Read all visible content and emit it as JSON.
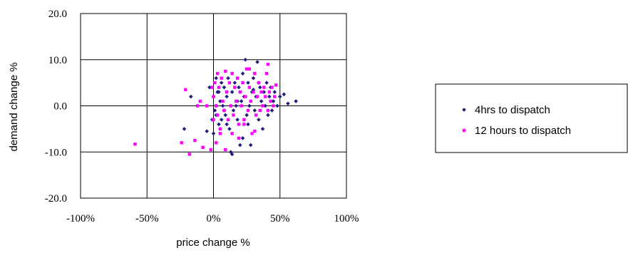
{
  "chart_data": {
    "type": "scatter",
    "xlabel": "price change %",
    "ylabel": "demand change %",
    "xlim": [
      -100,
      100
    ],
    "ylim": [
      -20,
      20
    ],
    "x_ticks": [
      "-100%",
      "-50%",
      "0%",
      "50%",
      "100%"
    ],
    "x_tick_values": [
      -100,
      -50,
      0,
      50,
      100
    ],
    "y_ticks": [
      "20.0",
      "10.0",
      "0.0",
      "-10.0",
      "-20.0"
    ],
    "y_tick_values": [
      20,
      10,
      0,
      -10,
      -20
    ],
    "grid": true,
    "legend_position": "right",
    "series": [
      {
        "name": "4hrs to dispatch",
        "color": "#1f1f7a",
        "marker": "diamond",
        "points": [
          [
            -22,
            -5
          ],
          [
            -17,
            2
          ],
          [
            -5,
            -5.5
          ],
          [
            -3,
            4
          ],
          [
            -1,
            -3
          ],
          [
            0,
            -6
          ],
          [
            0,
            2
          ],
          [
            1,
            -1
          ],
          [
            2,
            6
          ],
          [
            2,
            -2
          ],
          [
            3,
            3
          ],
          [
            4,
            -4
          ],
          [
            5,
            1
          ],
          [
            6,
            5
          ],
          [
            6,
            -3
          ],
          [
            7,
            0
          ],
          [
            8,
            4
          ],
          [
            9,
            -2
          ],
          [
            10,
            2
          ],
          [
            11,
            6
          ],
          [
            12,
            -5
          ],
          [
            13,
            -10
          ],
          [
            14,
            3
          ],
          [
            15,
            -1
          ],
          [
            16,
            5
          ],
          [
            17,
            0
          ],
          [
            18,
            -3
          ],
          [
            19,
            4
          ],
          [
            20,
            -8.5
          ],
          [
            21,
            1
          ],
          [
            22,
            7
          ],
          [
            23,
            2
          ],
          [
            24,
            10
          ],
          [
            25,
            -2
          ],
          [
            26,
            5
          ],
          [
            27,
            0
          ],
          [
            28,
            -8.5
          ],
          [
            29,
            3
          ],
          [
            30,
            6
          ],
          [
            31,
            -1
          ],
          [
            32,
            2
          ],
          [
            33,
            9.5
          ],
          [
            34,
            -3
          ],
          [
            35,
            4
          ],
          [
            36,
            1
          ],
          [
            37,
            -5
          ],
          [
            38,
            3
          ],
          [
            39,
            0
          ],
          [
            40,
            5
          ],
          [
            41,
            -2
          ],
          [
            42,
            2
          ],
          [
            43,
            4
          ],
          [
            44,
            -1
          ],
          [
            45,
            1
          ],
          [
            46,
            3
          ],
          [
            48,
            0
          ],
          [
            50,
            2
          ],
          [
            53,
            2.5
          ],
          [
            56,
            0.5
          ],
          [
            62,
            1
          ],
          [
            14,
            -10.5
          ],
          [
            22,
            -7
          ],
          [
            18,
            1
          ],
          [
            10,
            -4
          ],
          [
            26,
            -4
          ],
          [
            30,
            3.5
          ],
          [
            34,
            5
          ],
          [
            8,
            -1
          ],
          [
            4,
            3
          ],
          [
            2,
            0
          ]
        ]
      },
      {
        "name": "12 hours to dispatch",
        "color": "#ff00ff",
        "marker": "square",
        "points": [
          [
            -59,
            -8.3
          ],
          [
            -24,
            -8
          ],
          [
            -21,
            3.5
          ],
          [
            -18,
            -10.5
          ],
          [
            -14,
            -7.5
          ],
          [
            -12,
            0
          ],
          [
            -10,
            1
          ],
          [
            -8,
            -9
          ],
          [
            -5,
            0
          ],
          [
            -2,
            -9.5
          ],
          [
            -1,
            4
          ],
          [
            0,
            2
          ],
          [
            0,
            -3
          ],
          [
            1,
            5
          ],
          [
            2,
            0
          ],
          [
            3,
            7
          ],
          [
            3,
            -2
          ],
          [
            4,
            4
          ],
          [
            5,
            -5
          ],
          [
            6,
            6
          ],
          [
            7,
            1
          ],
          [
            8,
            -1
          ],
          [
            9,
            7.5
          ],
          [
            10,
            3
          ],
          [
            11,
            -3
          ],
          [
            12,
            5
          ],
          [
            13,
            0
          ],
          [
            14,
            7
          ],
          [
            15,
            -2
          ],
          [
            16,
            4
          ],
          [
            17,
            1
          ],
          [
            18,
            6
          ],
          [
            19,
            -4
          ],
          [
            20,
            3
          ],
          [
            21,
            0
          ],
          [
            22,
            5
          ],
          [
            23,
            -3
          ],
          [
            24,
            2
          ],
          [
            25,
            8
          ],
          [
            26,
            -1
          ],
          [
            27,
            4
          ],
          [
            28,
            1
          ],
          [
            29,
            -6
          ],
          [
            30,
            3
          ],
          [
            31,
            7
          ],
          [
            32,
            -2
          ],
          [
            33,
            2
          ],
          [
            34,
            5
          ],
          [
            35,
            -1
          ],
          [
            36,
            3
          ],
          [
            37,
            0
          ],
          [
            38,
            4
          ],
          [
            39,
            2
          ],
          [
            40,
            7
          ],
          [
            41,
            -1
          ],
          [
            42,
            3
          ],
          [
            43,
            1
          ],
          [
            44,
            4
          ],
          [
            45,
            0
          ],
          [
            46,
            2
          ],
          [
            47,
            4.5
          ],
          [
            41,
            9
          ],
          [
            27,
            8
          ],
          [
            9,
            -9.5
          ],
          [
            14,
            -6
          ],
          [
            19,
            -7
          ],
          [
            23,
            -4
          ],
          [
            31,
            -5.5
          ],
          [
            5,
            -6
          ],
          [
            2,
            -8
          ]
        ]
      }
    ]
  }
}
